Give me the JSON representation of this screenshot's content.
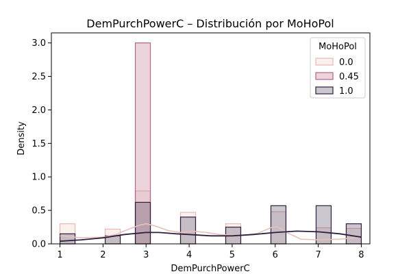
{
  "chart_data": {
    "type": "bar",
    "title": "DemPurchPowerC – Distribución por MoHoPol",
    "xlabel": "DemPurchPowerC",
    "ylabel": "Density",
    "xlim": [
      0.8,
      8.2
    ],
    "ylim": [
      0,
      3.15
    ],
    "x_ticks": [
      "1",
      "2",
      "3",
      "4",
      "5",
      "6",
      "7",
      "8"
    ],
    "y_ticks": [
      "0.0",
      "0.5",
      "1.0",
      "1.5",
      "2.0",
      "2.5",
      "3.0"
    ],
    "grid": false,
    "legend": {
      "title": "MoHoPol",
      "position": "top-right"
    },
    "bins": [
      [
        1.0,
        1.35
      ],
      [
        1.35,
        1.7
      ],
      [
        1.7,
        2.05
      ],
      [
        2.05,
        2.4
      ],
      [
        2.4,
        2.75
      ],
      [
        2.75,
        3.1
      ],
      [
        3.1,
        3.45
      ],
      [
        3.45,
        3.8
      ],
      [
        3.8,
        4.15
      ],
      [
        4.15,
        4.5
      ],
      [
        4.5,
        4.85
      ],
      [
        4.85,
        5.2
      ],
      [
        5.2,
        5.55
      ],
      [
        5.55,
        5.9
      ],
      [
        5.9,
        6.25
      ],
      [
        6.25,
        6.6
      ],
      [
        6.6,
        6.95
      ],
      [
        6.95,
        7.3
      ],
      [
        7.3,
        7.65
      ],
      [
        7.65,
        8.0
      ]
    ],
    "series": [
      {
        "name": "0.0",
        "color": "#f0d7d2",
        "edge": "#e8b9b2",
        "values": [
          0.3,
          0,
          0,
          0.22,
          0,
          0.79,
          0,
          0,
          0.47,
          0,
          0,
          0.3,
          0,
          0,
          0.48,
          0,
          0,
          0.24,
          0,
          0.23
        ],
        "kde": [
          [
            1.0,
            0.12
          ],
          [
            1.5,
            0.09
          ],
          [
            2.0,
            0.1
          ],
          [
            2.3,
            0.14
          ],
          [
            2.6,
            0.22
          ],
          [
            2.85,
            0.28
          ],
          [
            3.0,
            0.3
          ],
          [
            3.2,
            0.27
          ],
          [
            3.5,
            0.2
          ],
          [
            3.8,
            0.17
          ],
          [
            4.1,
            0.19
          ],
          [
            4.4,
            0.17
          ],
          [
            4.7,
            0.14
          ],
          [
            5.0,
            0.13
          ],
          [
            5.3,
            0.13
          ],
          [
            5.6,
            0.16
          ],
          [
            5.9,
            0.24
          ],
          [
            6.05,
            0.26
          ],
          [
            6.3,
            0.16
          ],
          [
            6.6,
            0.07
          ],
          [
            7.0,
            0.06
          ],
          [
            7.5,
            0.07
          ],
          [
            8.0,
            0.1
          ]
        ]
      },
      {
        "name": "0.45",
        "color": "#c9849e",
        "edge": "#b3648a",
        "values": [
          0,
          0,
          0,
          0,
          0,
          3.0,
          0,
          0,
          0,
          0,
          0,
          0,
          0,
          0,
          0,
          0,
          0,
          0,
          0,
          0
        ],
        "kde": []
      },
      {
        "name": "1.0",
        "color": "#2d1e3e",
        "edge": "#2d1e3e",
        "values": [
          0.15,
          0,
          0,
          0.12,
          0,
          0.62,
          0,
          0,
          0.4,
          0,
          0,
          0.25,
          0,
          0,
          0.57,
          0,
          0,
          0.57,
          0,
          0.3
        ],
        "kde": [
          [
            1.0,
            0.04
          ],
          [
            1.5,
            0.06
          ],
          [
            2.0,
            0.09
          ],
          [
            2.5,
            0.14
          ],
          [
            3.0,
            0.17
          ],
          [
            3.3,
            0.17
          ],
          [
            3.7,
            0.15
          ],
          [
            4.0,
            0.14
          ],
          [
            4.5,
            0.12
          ],
          [
            5.0,
            0.12
          ],
          [
            5.5,
            0.14
          ],
          [
            6.0,
            0.17
          ],
          [
            6.5,
            0.19
          ],
          [
            7.0,
            0.18
          ],
          [
            7.5,
            0.15
          ],
          [
            8.0,
            0.1
          ]
        ]
      }
    ]
  }
}
